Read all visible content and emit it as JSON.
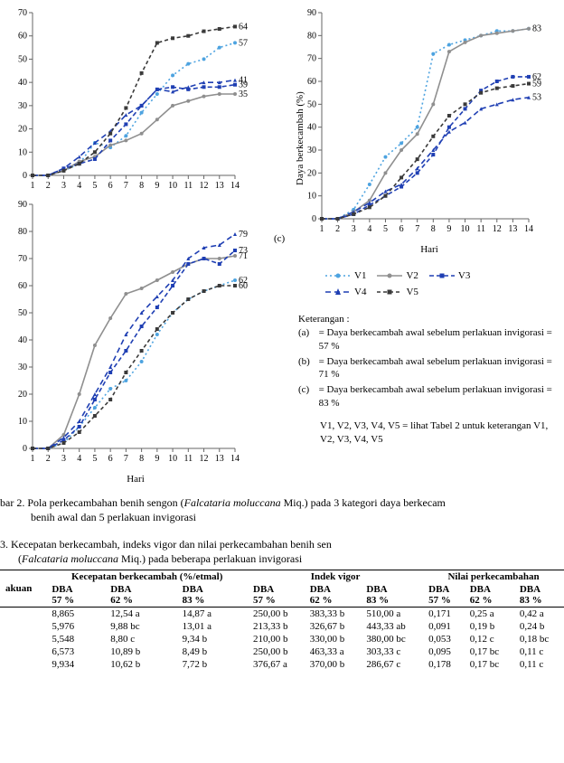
{
  "common": {
    "x": [
      1,
      2,
      3,
      4,
      5,
      6,
      7,
      8,
      9,
      10,
      11,
      12,
      13,
      14
    ],
    "xlim": [
      1,
      14
    ],
    "tick_font": 10,
    "axis_color": "#666666",
    "grid": false,
    "line_width": 1.6,
    "marker_size": 4,
    "font_family": "Times New Roman"
  },
  "series_style": {
    "V1": {
      "color": "#4da3e0",
      "dash": "2,3",
      "marker": "dot"
    },
    "V2": {
      "color": "#8f8f8f",
      "dash": "",
      "marker": "dot"
    },
    "V3": {
      "color": "#1f3fb3",
      "dash": "5,3",
      "marker": "square"
    },
    "V4": {
      "color": "#1f3fb3",
      "dash": "6,4",
      "marker": "triangle"
    },
    "V5": {
      "color": "#3a3a3a",
      "dash": "4,3",
      "marker": "square"
    }
  },
  "charts": {
    "a": {
      "ylim": [
        0,
        70
      ],
      "ystep": 10,
      "ylabel": "",
      "xlabel": "",
      "series": {
        "V1": [
          0,
          0,
          2,
          5,
          14,
          12,
          17,
          27,
          35,
          43,
          48,
          50,
          55,
          57
        ],
        "V2": [
          0,
          0,
          2,
          6,
          8,
          13,
          15,
          18,
          24,
          30,
          32,
          34,
          35,
          35
        ],
        "V3": [
          0,
          0,
          3,
          5,
          7,
          15,
          22,
          30,
          37,
          38,
          37,
          38,
          38,
          39
        ],
        "V4": [
          0,
          0,
          3,
          8,
          14,
          19,
          26,
          30,
          37,
          36,
          38,
          40,
          40,
          41
        ],
        "V5": [
          0,
          0,
          2,
          5,
          10,
          18,
          29,
          44,
          57,
          59,
          60,
          62,
          63,
          64
        ]
      },
      "end_labels": {
        "V5": "64",
        "V1": "57",
        "V4": "41",
        "V3": "39",
        "V2": "35"
      }
    },
    "b": {
      "ylim": [
        0,
        90
      ],
      "ystep": 10,
      "ylabel": "",
      "xlabel": "Hari",
      "series": {
        "V1": [
          0,
          0,
          2,
          8,
          15,
          22,
          25,
          32,
          42,
          50,
          55,
          58,
          60,
          62
        ],
        "V2": [
          0,
          0,
          5,
          20,
          38,
          48,
          57,
          59,
          62,
          65,
          68,
          70,
          70,
          71
        ],
        "V3": [
          0,
          0,
          3,
          8,
          18,
          28,
          36,
          45,
          52,
          60,
          68,
          70,
          68,
          73
        ],
        "V4": [
          0,
          0,
          4,
          10,
          20,
          30,
          42,
          50,
          56,
          62,
          70,
          74,
          75,
          79
        ],
        "V5": [
          0,
          0,
          2,
          6,
          12,
          18,
          28,
          36,
          44,
          50,
          55,
          58,
          60,
          60
        ]
      },
      "end_labels": {
        "V4": "79",
        "V3": "73",
        "V2": "71",
        "V1": "62",
        "V5": "60"
      }
    },
    "c": {
      "ylim": [
        0,
        90
      ],
      "ystep": 10,
      "ylabel": "Daya berkecambah (%)",
      "xlabel": "Hari",
      "series": {
        "V1": [
          0,
          0,
          4,
          15,
          27,
          33,
          40,
          72,
          76,
          78,
          80,
          82,
          82,
          83
        ],
        "V2": [
          0,
          0,
          3,
          8,
          20,
          30,
          37,
          50,
          73,
          77,
          80,
          81,
          82,
          83
        ],
        "V3": [
          0,
          0,
          2,
          6,
          10,
          14,
          20,
          28,
          40,
          48,
          56,
          60,
          62,
          62
        ],
        "V4": [
          0,
          0,
          3,
          7,
          12,
          15,
          22,
          30,
          38,
          42,
          48,
          50,
          52,
          53
        ],
        "V5": [
          0,
          0,
          2,
          5,
          10,
          18,
          26,
          36,
          45,
          50,
          55,
          57,
          58,
          59
        ]
      },
      "end_labels": {
        "V1": "83",
        "V3": "62",
        "V5": "59",
        "V4": "53"
      }
    }
  },
  "legend": {
    "items": [
      "V1",
      "V2",
      "V3",
      "V4",
      "V5"
    ]
  },
  "keterangan": {
    "title": "Keterangan :",
    "a": "= Daya berkecambah awal sebelum perlakuan invigorasi = 57 %",
    "b": "= Daya berkecambah awal sebelum perlakuan invigorasi = 71 %",
    "c": "= Daya berkecambah awal sebelum perlakuan invigorasi = 83 %",
    "note": "V1, V2, V3, V4, V5 = lihat Tabel 2 untuk keterangan V1, V2, V3, V4, V5"
  },
  "fig_caption": {
    "prefix": "bar 2. Pola perkecambahan benih sengon (",
    "italic": "Falcataria moluccana",
    "suffix": " Miq.) pada 3 kategori daya berkecam",
    "line2": "benih awal dan 5 perlakuan invigorasi"
  },
  "table_caption": {
    "prefix": "3. Kecepatan    berkecambah,    indeks    vigor    dan    nilai    perkecambahan    benih    sen",
    "line2_pre": "(",
    "line2_it": "Falcataria moluccana",
    "line2_post": " Miq.) pada beberapa perlakuan invigorasi"
  },
  "table": {
    "group_headers": [
      "Kecepatan berkecambah (%/etmal)",
      "Indek vigor",
      "Nilai perkecambahan"
    ],
    "row_header": "akuan",
    "sub_headers": [
      "DBA 57 %",
      "DBA 62 %",
      "DBA 83 %",
      "DBA 57 %",
      "DBA 62 %",
      "DBA 83 %",
      "DBA 57 %",
      "DBA 62 %",
      "DBA 83 %"
    ],
    "rows": [
      [
        "8,865",
        "12,54 a",
        "14,87 a",
        "250,00 b",
        "383,33 b",
        "510,00 a",
        "0,171",
        "0,25 a",
        "0,42 a"
      ],
      [
        "5,976",
        "9,88 bc",
        "13,01 a",
        "213,33 b",
        "326,67 b",
        "443,33 ab",
        "0,091",
        "0,19 b",
        "0,24 b"
      ],
      [
        "5,548",
        "8,80 c",
        "9,34 b",
        "210,00 b",
        "330,00 b",
        "380,00 bc",
        "0,053",
        "0,12 c",
        "0,18 bc"
      ],
      [
        "6,573",
        "10,89 b",
        "8,49 b",
        "250,00 b",
        "463,33 a",
        "303,33 c",
        "0,095",
        "0,17 bc",
        "0,11 c"
      ],
      [
        "9,934",
        "10,62 b",
        "7,72 b",
        "376,67 a",
        "370,00 b",
        "286,67 c",
        "0,178",
        "0,17 bc",
        "0,11 c"
      ]
    ]
  },
  "panel_tags": {
    "c": "(c)"
  }
}
